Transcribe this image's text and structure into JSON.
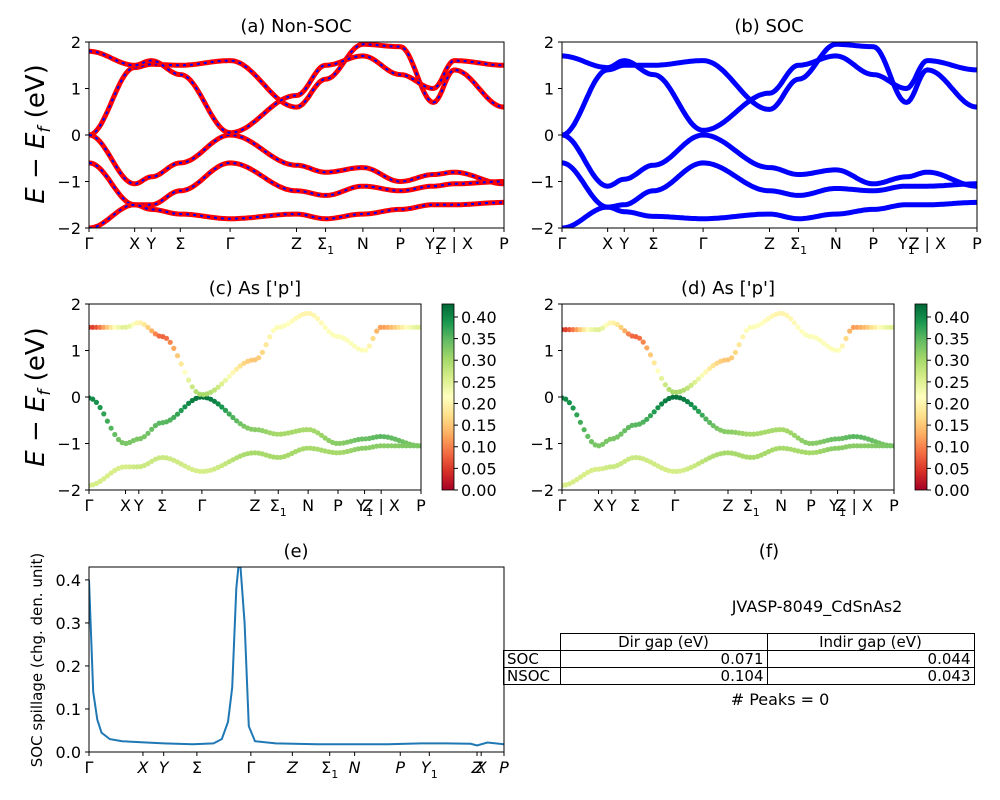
{
  "bands": {
    "ylabel_math": "E − E",
    "ylabel_sub": "f",
    "ylabel_unit": " (eV)",
    "ylim": [
      -2,
      2
    ],
    "yticks": [
      "2",
      "1",
      "0",
      "−1",
      "−2"
    ],
    "kpath": [
      {
        "label": "Γ",
        "sub": ""
      },
      {
        "label": "X",
        "sub": ""
      },
      {
        "label": "Y",
        "sub": ""
      },
      {
        "label": "Σ",
        "sub": ""
      },
      {
        "label": "Γ",
        "sub": ""
      },
      {
        "label": "Z",
        "sub": ""
      },
      {
        "label": "Σ",
        "sub": "1"
      },
      {
        "label": "N",
        "sub": ""
      },
      {
        "label": "P",
        "sub": ""
      },
      {
        "label": "Y",
        "sub": "1"
      },
      {
        "label": "Z | X",
        "sub": ""
      },
      {
        "label": "P",
        "sub": ""
      }
    ]
  },
  "panels": {
    "a": {
      "title": "(a) Non-SOC"
    },
    "b": {
      "title": "(b) SOC"
    },
    "c": {
      "title": "(c)  As ['p']"
    },
    "d": {
      "title": "(d) As ['p']"
    },
    "e": {
      "title": "(e)"
    },
    "f": {
      "title": "(f)"
    }
  },
  "colorbar": {
    "ticks": [
      "0.00",
      "0.05",
      "0.10",
      "0.15",
      "0.20",
      "0.25",
      "0.30",
      "0.35",
      "0.40"
    ],
    "range": [
      0,
      0.43
    ],
    "colors": [
      "#a50026",
      "#d73027",
      "#f46d43",
      "#fdae61",
      "#fee08b",
      "#ffffbf",
      "#d9ef8b",
      "#a6d96a",
      "#66bd63",
      "#1a9850",
      "#006837"
    ]
  },
  "chart_data": [
    {
      "type": "line",
      "title": "(a) Non-SOC",
      "ylabel": "E − E_f (eV)",
      "ylim": [
        -2,
        2
      ],
      "x": [
        0,
        0.11,
        0.15,
        0.22,
        0.34,
        0.5,
        0.57,
        0.66,
        0.75,
        0.83,
        0.88,
        1.0
      ],
      "series": [
        {
          "name": "",
          "color": "#ff0000",
          "dash_color": "#0000ff",
          "values": [
            0,
            1.45,
            1.52,
            1.5,
            1.6,
            0.6,
            1.2,
            1.95,
            1.9,
            0.7,
            1.4,
            0.6
          ]
        },
        {
          "name": "",
          "color": "#ff0000",
          "dash_color": "#0000ff",
          "values": [
            0,
            -1.05,
            -0.9,
            -0.6,
            0.0,
            -0.65,
            -0.8,
            -0.7,
            -1.0,
            -0.85,
            -0.8,
            -1.05
          ]
        },
        {
          "name": "",
          "color": "#ff0000",
          "dash_color": "#0000ff",
          "values": [
            1.8,
            1.5,
            1.6,
            1.3,
            0.05,
            0.85,
            1.5,
            1.7,
            1.3,
            1.0,
            1.6,
            1.5
          ]
        },
        {
          "name": "",
          "color": "#ff0000",
          "dash_color": "#0000ff",
          "values": [
            -0.6,
            -1.5,
            -1.5,
            -1.2,
            -0.6,
            -1.2,
            -1.3,
            -1.1,
            -1.2,
            -1.1,
            -1.05,
            -1.0
          ]
        },
        {
          "name": "",
          "color": "#ff0000",
          "dash_color": "#0000ff",
          "values": [
            -2.0,
            -1.5,
            -1.6,
            -1.7,
            -1.8,
            -1.7,
            -1.8,
            -1.7,
            -1.6,
            -1.5,
            -1.5,
            -1.45
          ]
        }
      ]
    },
    {
      "type": "line",
      "title": "(b) SOC",
      "ylim": [
        -2,
        2
      ],
      "x": [
        0,
        0.11,
        0.15,
        0.22,
        0.34,
        0.5,
        0.57,
        0.66,
        0.75,
        0.83,
        0.88,
        1.0
      ],
      "series": [
        {
          "name": "",
          "color": "#0000ff",
          "values": [
            0,
            1.4,
            1.5,
            1.5,
            1.6,
            0.55,
            1.2,
            1.95,
            1.9,
            0.7,
            1.4,
            0.6
          ]
        },
        {
          "name": "",
          "color": "#0000ff",
          "values": [
            0,
            -1.1,
            -0.95,
            -0.65,
            0.0,
            -0.7,
            -0.85,
            -0.75,
            -1.05,
            -0.9,
            -0.8,
            -1.1
          ]
        },
        {
          "name": "",
          "color": "#0000ff",
          "values": [
            1.7,
            1.45,
            1.6,
            1.3,
            0.1,
            0.9,
            1.5,
            1.7,
            1.3,
            1.0,
            1.6,
            1.4
          ]
        },
        {
          "name": "",
          "color": "#0000ff",
          "values": [
            -0.6,
            -1.55,
            -1.5,
            -1.2,
            -0.6,
            -1.2,
            -1.3,
            -1.15,
            -1.2,
            -1.1,
            -1.1,
            -1.05
          ]
        },
        {
          "name": "",
          "color": "#0000ff",
          "values": [
            -2.0,
            -1.55,
            -1.65,
            -1.75,
            -1.8,
            -1.7,
            -1.8,
            -1.7,
            -1.6,
            -1.5,
            -1.5,
            -1.45
          ]
        }
      ]
    },
    {
      "type": "scatter",
      "title": "(c)  As ['p']",
      "ylim": [
        -2,
        2
      ],
      "colorbar_range": [
        0,
        0.43
      ],
      "x": [
        0,
        0.11,
        0.15,
        0.22,
        0.34,
        0.5,
        0.57,
        0.66,
        0.75,
        0.83,
        0.88,
        1.0
      ],
      "series": [
        {
          "name": "",
          "values": [
            -0.02,
            -1.0,
            -0.9,
            -0.55,
            0.0,
            -0.7,
            -0.8,
            -0.7,
            -1.0,
            -0.9,
            -0.85,
            -1.05
          ],
          "weights": [
            0.4,
            0.33,
            0.33,
            0.35,
            0.42,
            0.32,
            0.3,
            0.3,
            0.32,
            0.34,
            0.35,
            0.33
          ]
        },
        {
          "name": "",
          "values": [
            1.5,
            1.5,
            1.6,
            1.3,
            0.05,
            0.8,
            1.5,
            1.8,
            1.3,
            1.0,
            1.5,
            1.5
          ],
          "weights": [
            0.05,
            0.25,
            0.2,
            0.08,
            0.3,
            0.15,
            0.22,
            0.2,
            0.22,
            0.22,
            0.12,
            0.25
          ]
        },
        {
          "name": "",
          "values": [
            -1.9,
            -1.5,
            -1.5,
            -1.3,
            -1.6,
            -1.2,
            -1.3,
            -1.1,
            -1.2,
            -1.1,
            -1.05,
            -1.05
          ],
          "weights": [
            0.26,
            0.26,
            0.27,
            0.27,
            0.26,
            0.3,
            0.3,
            0.3,
            0.3,
            0.32,
            0.32,
            0.33
          ]
        }
      ]
    },
    {
      "type": "scatter",
      "title": "(d) As ['p']",
      "ylim": [
        -2,
        2
      ],
      "colorbar_range": [
        0,
        0.43
      ],
      "x": [
        0,
        0.11,
        0.15,
        0.22,
        0.34,
        0.5,
        0.57,
        0.66,
        0.75,
        0.83,
        0.88,
        1.0
      ],
      "series": [
        {
          "name": "",
          "values": [
            -0.02,
            -1.05,
            -0.9,
            -0.6,
            0.0,
            -0.75,
            -0.8,
            -0.7,
            -1.0,
            -0.9,
            -0.85,
            -1.05
          ],
          "weights": [
            0.4,
            0.33,
            0.33,
            0.35,
            0.42,
            0.32,
            0.3,
            0.3,
            0.32,
            0.34,
            0.35,
            0.33
          ]
        },
        {
          "name": "",
          "values": [
            1.45,
            1.45,
            1.6,
            1.3,
            0.1,
            0.8,
            1.5,
            1.8,
            1.3,
            1.0,
            1.5,
            1.5
          ],
          "weights": [
            0.05,
            0.25,
            0.2,
            0.08,
            0.3,
            0.15,
            0.22,
            0.2,
            0.22,
            0.22,
            0.12,
            0.25
          ]
        },
        {
          "name": "",
          "values": [
            -1.9,
            -1.55,
            -1.5,
            -1.3,
            -1.6,
            -1.2,
            -1.3,
            -1.1,
            -1.2,
            -1.1,
            -1.05,
            -1.05
          ],
          "weights": [
            0.26,
            0.26,
            0.27,
            0.27,
            0.26,
            0.3,
            0.3,
            0.3,
            0.3,
            0.32,
            0.32,
            0.33
          ]
        }
      ]
    },
    {
      "type": "line",
      "title": "(e)",
      "ylabel": "SOC spillage (chg. den. unit)",
      "ylim": [
        0,
        0.43
      ],
      "yticks": [
        "0.0",
        "0.1",
        "0.2",
        "0.3",
        "0.4"
      ],
      "color": "#1f77b4",
      "x": [
        0,
        0.01,
        0.02,
        0.03,
        0.05,
        0.08,
        0.12,
        0.18,
        0.25,
        0.3,
        0.32,
        0.335,
        0.345,
        0.355,
        0.36,
        0.365,
        0.375,
        0.385,
        0.4,
        0.45,
        0.55,
        0.65,
        0.72,
        0.8,
        0.86,
        0.92,
        0.935,
        0.96,
        1.0
      ],
      "values": [
        0.4,
        0.14,
        0.075,
        0.045,
        0.03,
        0.025,
        0.023,
        0.02,
        0.018,
        0.02,
        0.03,
        0.07,
        0.15,
        0.38,
        0.43,
        0.43,
        0.3,
        0.06,
        0.025,
        0.02,
        0.018,
        0.018,
        0.018,
        0.02,
        0.02,
        0.019,
        0.015,
        0.022,
        0.018
      ]
    }
  ],
  "spillage": {
    "ylabel": "SOC spillage (chg. den. unit)",
    "yticks": [
      "0.0",
      "0.1",
      "0.2",
      "0.3",
      "0.4"
    ],
    "kpath": [
      {
        "label": "Γ",
        "sub": ""
      },
      {
        "label": "X",
        "sub": ""
      },
      {
        "label": "Y",
        "sub": ""
      },
      {
        "label": "Σ",
        "sub": ""
      },
      {
        "label": "Γ",
        "sub": ""
      },
      {
        "label": "Z",
        "sub": ""
      },
      {
        "label": "Σ",
        "sub": "1"
      },
      {
        "label": "N",
        "sub": ""
      },
      {
        "label": "P",
        "sub": ""
      },
      {
        "label": "Y",
        "sub": "1"
      },
      {
        "label": "Z",
        "sub": ""
      },
      {
        "label": "X",
        "sub": ""
      },
      {
        "label": "P",
        "sub": ""
      }
    ]
  },
  "info": {
    "material": "JVASP-8049_CdSnAs2",
    "table": {
      "headers": [
        "Dir gap (eV)",
        "Indir gap (eV)"
      ],
      "rows": [
        {
          "label": "SOC",
          "dir": "0.071",
          "indir": "0.044"
        },
        {
          "label": "NSOC",
          "dir": "0.104",
          "indir": "0.043"
        }
      ]
    },
    "peaks": "# Peaks = 0"
  }
}
